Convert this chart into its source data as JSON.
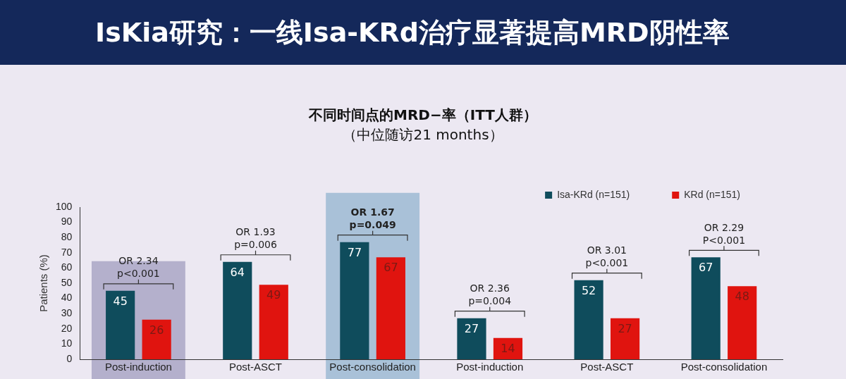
{
  "chart_data": {
    "type": "bar",
    "title": "IsKia研究：一线Isa-KRd治疗显著提高MRD阴性率",
    "subtitle": "不同时间点的MRD−率（ITT人群）",
    "ylabel": "Patients (%)",
    "categories": [
      "Post-induction",
      "Post-ASCT",
      "Post-consolidation",
      "Post-induction",
      "Post-ASCT",
      "Post-consolidation"
    ],
    "series": [
      {
        "name": "Isa-KRd (n=151)",
        "color": "#0f4c5c",
        "values": [
          45,
          64,
          77,
          27,
          52,
          67
        ]
      },
      {
        "name": "KRd (n=151)",
        "color": "#e0140f",
        "values": [
          26,
          49,
          67,
          14,
          27,
          48
        ]
      }
    ],
    "ylim": [
      0,
      100
    ],
    "yticks": [
      0,
      10,
      20,
      30,
      40,
      50,
      60,
      70,
      80,
      90,
      100
    ],
    "grid": false,
    "legend": "top right",
    "data_labels": true,
    "bands": [
      {
        "axis": "x",
        "from": "Post-induction",
        "to": "Post-induction",
        "color": "#b4b0cc"
      },
      {
        "axis": "x",
        "from": "Post-consolidation",
        "to": "Post-consolidation",
        "color": "#a9c1d8"
      }
    ],
    "annotations": [
      "（中位随访21 months）",
      "OR 2.34\np<0.001",
      "OR 1.93\np=0.006",
      "OR 1.67\np=0.049",
      "OR 2.36\np=0.004",
      "OR 3.01\np<0.001",
      "OR 2.29\nP<0.001"
    ]
  }
}
